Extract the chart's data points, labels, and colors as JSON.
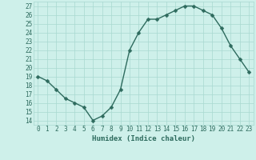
{
  "x": [
    0,
    1,
    2,
    3,
    4,
    5,
    6,
    7,
    8,
    9,
    10,
    11,
    12,
    13,
    14,
    15,
    16,
    17,
    18,
    19,
    20,
    21,
    22,
    23
  ],
  "y": [
    19,
    18.5,
    17.5,
    16.5,
    16,
    15.5,
    14,
    14.5,
    15.5,
    17.5,
    22,
    24,
    25.5,
    25.5,
    26,
    26.5,
    27,
    27,
    26.5,
    26,
    24.5,
    22.5,
    21,
    19.5
  ],
  "line_color": "#2e6b5e",
  "marker": "D",
  "markersize": 2.5,
  "linewidth": 1.0,
  "bg_color": "#cef0ea",
  "grid_color": "#a8d8d0",
  "xlabel": "Humidex (Indice chaleur)",
  "xlim": [
    -0.5,
    23.5
  ],
  "ylim": [
    13.5,
    27.5
  ],
  "yticks": [
    14,
    15,
    16,
    17,
    18,
    19,
    20,
    21,
    22,
    23,
    24,
    25,
    26,
    27
  ],
  "xticks": [
    0,
    1,
    2,
    3,
    4,
    5,
    6,
    7,
    8,
    9,
    10,
    11,
    12,
    13,
    14,
    15,
    16,
    17,
    18,
    19,
    20,
    21,
    22,
    23
  ],
  "tick_fontsize": 5.5,
  "xlabel_fontsize": 6.5,
  "tick_color": "#2e6b5e",
  "xlabel_color": "#2e6b5e"
}
